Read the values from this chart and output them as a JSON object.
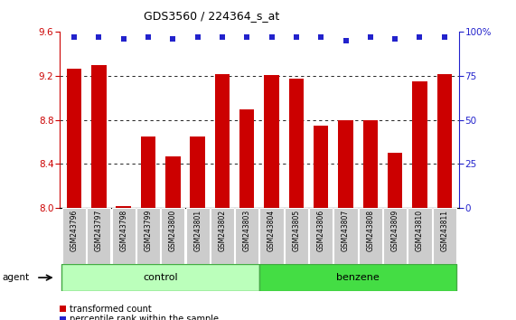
{
  "title": "GDS3560 / 224364_s_at",
  "samples": [
    "GSM243796",
    "GSM243797",
    "GSM243798",
    "GSM243799",
    "GSM243800",
    "GSM243801",
    "GSM243802",
    "GSM243803",
    "GSM243804",
    "GSM243805",
    "GSM243806",
    "GSM243807",
    "GSM243808",
    "GSM243809",
    "GSM243810",
    "GSM243811"
  ],
  "bar_values": [
    9.27,
    9.3,
    8.02,
    8.65,
    8.47,
    8.65,
    9.22,
    8.9,
    9.21,
    9.18,
    8.75,
    8.8,
    8.8,
    8.5,
    9.15,
    9.22
  ],
  "percentile_values": [
    97,
    97,
    96,
    97,
    96,
    97,
    97,
    97,
    97,
    97,
    97,
    95,
    97,
    96,
    97,
    97
  ],
  "bar_color": "#cc0000",
  "dot_color": "#2222cc",
  "ylim_left": [
    8.0,
    9.6
  ],
  "ylim_right": [
    0,
    100
  ],
  "yticks_left": [
    8.0,
    8.4,
    8.8,
    9.2,
    9.6
  ],
  "yticks_right": [
    0,
    25,
    50,
    75,
    100
  ],
  "grid_values": [
    8.4,
    8.8,
    9.2
  ],
  "ctrl_n": 8,
  "benz_n": 8,
  "control_color": "#bbffbb",
  "benzene_color": "#44dd44",
  "agent_label": "agent",
  "control_label": "control",
  "benzene_label": "benzene",
  "legend_bar_label": "transformed count",
  "legend_dot_label": "percentile rank within the sample",
  "title_color": "#000000",
  "axis_color_left": "#cc0000",
  "axis_color_right": "#2222cc",
  "tick_bg_color": "#cccccc",
  "bar_width": 0.6
}
